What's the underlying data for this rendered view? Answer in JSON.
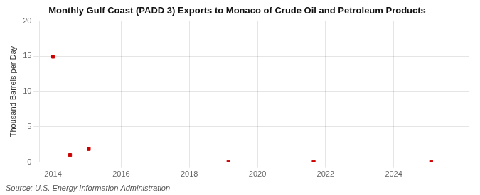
{
  "chart_data": {
    "type": "scatter",
    "title": "Monthly Gulf Coast (PADD 3) Exports to Monaco of Crude Oil and Petroleum Products",
    "ylabel": "Thousand Barrels per Day",
    "annotation": "Source: U.S. Energy Information Administration",
    "x": [
      2014.0,
      2014.5,
      2015.05,
      2019.15,
      2021.65,
      2025.1
    ],
    "values": [
      14.95,
      1.0,
      1.85,
      0.03,
      0.03,
      0.03
    ],
    "color": "#cc0000",
    "marker": "square",
    "xlim": [
      2013.6,
      2026.2
    ],
    "ylim": [
      0,
      20
    ],
    "xticks": [
      2014,
      2016,
      2018,
      2020,
      2022,
      2024
    ],
    "yticks": [
      0,
      5,
      10,
      15,
      20
    ],
    "grid": true
  }
}
